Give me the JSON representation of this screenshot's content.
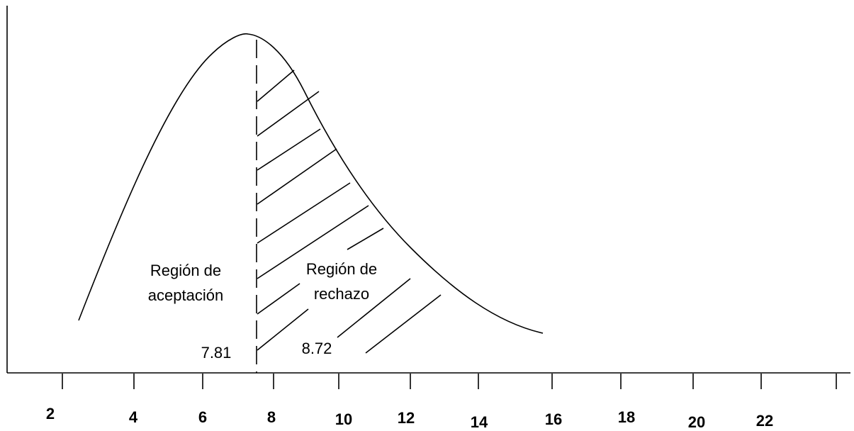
{
  "regions": {
    "acceptance": [
      "Región de",
      "aceptación"
    ],
    "rejection": [
      "Región de",
      "rechazo"
    ]
  },
  "values": {
    "critical": "7.81",
    "statistic": "8.72"
  },
  "axis": {
    "ticks": [
      "2",
      "4",
      "6",
      "8",
      "10",
      "12",
      "14",
      "16",
      "18",
      "20",
      "22"
    ]
  }
}
